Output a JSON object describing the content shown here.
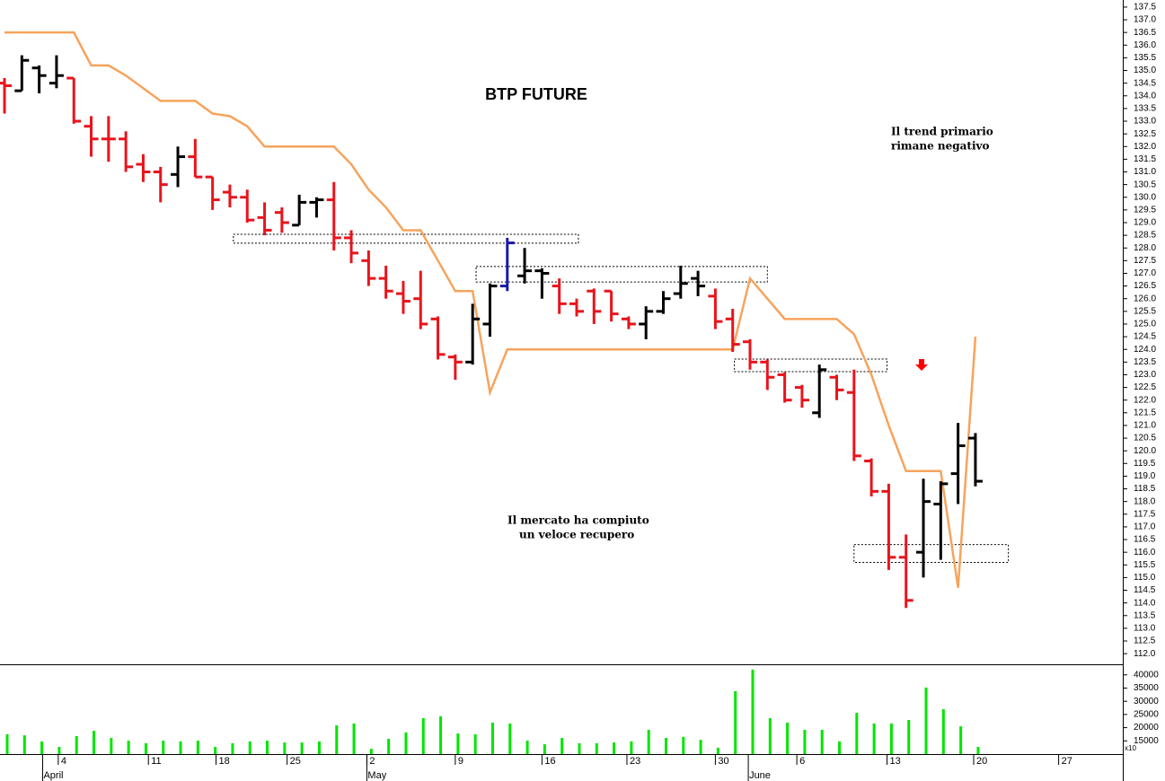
{
  "chart_data": [
    {
      "type": "ohlc",
      "title": "BTP FUTURE",
      "annotations": [
        {
          "lines": [
            "Il trend primario",
            "rimane negativo"
          ],
          "color": "#ff0000"
        },
        {
          "lines": [
            "Il mercato ha compiuto",
            "un veloce recupero"
          ],
          "color": "#000000"
        }
      ],
      "categories": [
        null,
        null,
        null,
        null,
        null,
        null,
        null,
        null,
        null,
        null,
        null,
        null,
        null,
        null,
        null,
        null,
        null,
        null,
        null,
        null,
        null,
        null,
        null,
        null,
        null,
        null,
        null,
        null,
        null,
        null,
        null,
        null,
        null,
        null,
        null,
        null,
        null,
        null,
        null,
        null,
        null,
        null,
        null,
        null,
        null,
        null,
        null,
        null,
        null,
        null,
        null,
        null,
        null,
        null,
        null,
        null,
        null
      ],
      "open": [
        134.5,
        134.2,
        135.1,
        134.5,
        134.7,
        132.8,
        132.3,
        132.3,
        131.3,
        131.0,
        130.9,
        131.6,
        130.8,
        130.2,
        130.0,
        129.2,
        129.4,
        128.9,
        129.8,
        129.9,
        128.4,
        127.5,
        126.8,
        126.2,
        126.0,
        125.2,
        123.7,
        123.5,
        125.0,
        126.5,
        126.9,
        127.1,
        126.5,
        125.8,
        126.3,
        126.3,
        125.2,
        125.0,
        125.5,
        126.2,
        126.8,
        126.1,
        125.2,
        124.3,
        123.5,
        123.0,
        122.5,
        121.5,
        122.9,
        122.3,
        119.6,
        118.4,
        115.8,
        116.0,
        117.9,
        119.1,
        120.5
      ],
      "high": [
        134.7,
        135.6,
        135.2,
        135.6,
        134.7,
        133.2,
        133.2,
        132.6,
        131.7,
        131.2,
        132.0,
        132.3,
        130.8,
        130.5,
        130.3,
        129.8,
        129.6,
        130.1,
        130.0,
        130.6,
        128.7,
        127.9,
        127.3,
        126.7,
        127.1,
        125.3,
        123.8,
        125.8,
        126.6,
        128.4,
        128.0,
        127.2,
        126.8,
        126.0,
        126.4,
        126.3,
        125.3,
        125.7,
        126.3,
        127.3,
        127.1,
        126.4,
        125.6,
        124.4,
        123.6,
        123.1,
        122.6,
        123.4,
        123.0,
        123.2,
        119.7,
        118.7,
        116.7,
        118.9,
        118.8,
        121.1,
        120.7
      ],
      "low": [
        133.3,
        134.2,
        134.1,
        134.3,
        132.9,
        131.6,
        131.4,
        131.0,
        130.6,
        129.8,
        130.4,
        130.8,
        129.5,
        129.6,
        129.0,
        128.5,
        128.6,
        128.9,
        129.2,
        127.9,
        127.4,
        126.5,
        126.0,
        125.4,
        124.8,
        123.6,
        122.8,
        123.4,
        124.5,
        126.3,
        126.6,
        126.0,
        125.4,
        125.3,
        125.0,
        125.1,
        124.8,
        124.4,
        125.4,
        126.0,
        126.1,
        124.8,
        123.9,
        123.2,
        122.4,
        121.9,
        121.7,
        121.3,
        122.0,
        119.6,
        118.2,
        115.3,
        113.8,
        115.0,
        115.7,
        117.9,
        118.6
      ],
      "close": [
        134.4,
        135.4,
        134.8,
        134.8,
        133.0,
        132.3,
        132.3,
        131.2,
        131.0,
        130.5,
        131.6,
        130.8,
        129.9,
        130.0,
        129.1,
        128.7,
        129.0,
        129.8,
        129.9,
        128.4,
        127.8,
        126.8,
        126.3,
        125.9,
        125.0,
        123.8,
        123.5,
        125.2,
        126.5,
        128.2,
        127.1,
        127.0,
        125.8,
        125.5,
        125.5,
        125.4,
        125.0,
        125.5,
        126.0,
        126.6,
        126.5,
        125.1,
        124.2,
        123.5,
        122.9,
        122.0,
        122.0,
        123.2,
        122.4,
        119.8,
        118.4,
        115.8,
        114.1,
        118.0,
        118.7,
        120.2,
        118.8
      ],
      "colors": [
        "#e8141c",
        "#000000",
        "#000000",
        "#000000",
        "#e8141c",
        "#e8141c",
        "#e8141c",
        "#e8141c",
        "#e8141c",
        "#e8141c",
        "#000000",
        "#e8141c",
        "#e8141c",
        "#e8141c",
        "#e8141c",
        "#e8141c",
        "#e8141c",
        "#000000",
        "#000000",
        "#e8141c",
        "#e8141c",
        "#e8141c",
        "#e8141c",
        "#e8141c",
        "#e8141c",
        "#e8141c",
        "#e8141c",
        "#000000",
        "#000000",
        "#1a1aa8",
        "#000000",
        "#000000",
        "#e8141c",
        "#e8141c",
        "#e8141c",
        "#e8141c",
        "#e8141c",
        "#000000",
        "#000000",
        "#000000",
        "#000000",
        "#e8141c",
        "#e8141c",
        "#e8141c",
        "#e8141c",
        "#e8141c",
        "#e8141c",
        "#000000",
        "#e8141c",
        "#e8141c",
        "#e8141c",
        "#e8141c",
        "#e8141c",
        "#000000",
        "#000000",
        "#000000",
        "#000000"
      ],
      "line": {
        "color": "#f7a35c",
        "values": [
          136.5,
          136.5,
          136.5,
          136.5,
          136.5,
          135.2,
          135.2,
          134.8,
          134.3,
          133.8,
          133.8,
          133.8,
          133.3,
          133.2,
          132.8,
          132.0,
          132.0,
          132.0,
          132.0,
          132.0,
          131.3,
          130.3,
          129.6,
          128.7,
          128.7,
          127.5,
          126.3,
          126.3,
          122.3,
          124.0,
          124.0,
          124.0,
          124.0,
          124.0,
          124.0,
          124.0,
          124.0,
          124.0,
          124.0,
          124.0,
          124.0,
          124.0,
          124.0,
          126.8,
          126.0,
          125.2,
          125.2,
          125.2,
          125.2,
          124.6,
          123.0,
          121.0,
          119.2,
          119.2,
          119.2,
          114.6,
          124.5
        ]
      },
      "zones": [
        {
          "from": 13.2,
          "to": 33.1,
          "low": 128.19,
          "high": 128.54
        },
        {
          "from": 27.2,
          "to": 44.0,
          "low": 126.66,
          "high": 127.27
        },
        {
          "from": 42.1,
          "to": 50.9,
          "low": 123.12,
          "high": 123.62
        },
        {
          "from": 49.0,
          "to": 57.9,
          "low": 115.6,
          "high": 116.3
        }
      ],
      "xlim": [
        -0.26,
        64.5
      ],
      "ylim": [
        111.58,
        137.78
      ],
      "yticks": [
        {
          "value": 112,
          "label": "112.0"
        },
        112.5,
        {
          "value": 113,
          "label": "113.0"
        },
        113.5,
        {
          "value": 114,
          "label": "114.0"
        },
        114.5,
        {
          "value": 115,
          "label": "115.0"
        },
        115.5,
        {
          "value": 116,
          "label": "116.0"
        },
        116.5,
        {
          "value": 117,
          "label": "117.0"
        },
        117.5,
        {
          "value": 118,
          "label": "118.0"
        },
        118.5,
        {
          "value": 119,
          "label": "119.0"
        },
        119.5,
        {
          "value": 120,
          "label": "120.0"
        },
        120.5,
        {
          "value": 121,
          "label": "121.0"
        },
        121.5,
        {
          "value": 122,
          "label": "122.0"
        },
        122.5,
        {
          "value": 123,
          "label": "123.0"
        },
        123.5,
        {
          "value": 124,
          "label": "124.0"
        },
        124.5,
        {
          "value": 125,
          "label": "125.0"
        },
        125.5,
        {
          "value": 126,
          "label": "126.0"
        },
        126.5,
        {
          "value": 127,
          "label": "127.0"
        },
        127.5,
        {
          "value": 128,
          "label": "128.0"
        },
        128.5,
        {
          "value": 129,
          "label": "129.0"
        },
        129.5,
        {
          "value": 130,
          "label": "130.0"
        },
        130.5,
        {
          "value": 131,
          "label": "131.0"
        },
        131.5,
        {
          "value": 132,
          "label": "132.0"
        },
        132.5,
        {
          "value": 133,
          "label": "133.0"
        },
        133.5,
        {
          "value": 134,
          "label": "134.0"
        },
        134.5,
        {
          "value": 135,
          "label": "135.0"
        },
        135.5,
        {
          "value": 136,
          "label": "136.0"
        },
        136.5,
        {
          "value": 137,
          "label": "137.0"
        },
        137.5
      ]
    },
    {
      "type": "bar",
      "categories": [
        null,
        null,
        null,
        null,
        null,
        null,
        null,
        null,
        null,
        null,
        null,
        null,
        null,
        null,
        null,
        null,
        null,
        null,
        null,
        null,
        null,
        null,
        null,
        null,
        null,
        null,
        null,
        null,
        null,
        null,
        null,
        null,
        null,
        null,
        null,
        null,
        null,
        null,
        null,
        null,
        null,
        null,
        null,
        null,
        null,
        null,
        null,
        null,
        null,
        null,
        null,
        null,
        null,
        null,
        null,
        null,
        null
      ],
      "values": [
        17500,
        17100,
        14800,
        12700,
        16800,
        18800,
        16100,
        15100,
        14100,
        15100,
        14800,
        15100,
        12700,
        14100,
        14800,
        15100,
        14400,
        14400,
        14800,
        20900,
        21600,
        12000,
        15800,
        18200,
        23600,
        24300,
        17800,
        17500,
        21900,
        21600,
        15100,
        13700,
        16100,
        14100,
        14100,
        14400,
        14800,
        19200,
        16100,
        16500,
        15400,
        12400,
        33800,
        42000,
        23600,
        21900,
        19200,
        19200,
        14800,
        25600,
        21600,
        21600,
        22900,
        35200,
        27000,
        20500,
        12700
      ],
      "color": "#00e600",
      "xlim": [
        -0.26,
        64.5
      ],
      "ylim": [
        10000,
        44000
      ],
      "yticks": [
        15000,
        20000,
        25000,
        30000,
        35000,
        40000
      ],
      "axis_note": "x10",
      "xticks": [
        {
          "value": 3.1,
          "label": "4"
        },
        {
          "value": 8.3,
          "label": "11"
        },
        {
          "value": 12.2,
          "label": "18"
        },
        {
          "value": 16.3,
          "label": "25"
        },
        {
          "value": 20.9,
          "label": "2"
        },
        {
          "value": 26.0,
          "label": "9"
        },
        {
          "value": 31.0,
          "label": "16"
        },
        {
          "value": 35.9,
          "label": "23"
        },
        {
          "value": 41.0,
          "label": "30"
        },
        {
          "value": 45.7,
          "label": "6"
        },
        {
          "value": 50.9,
          "label": "13"
        },
        {
          "value": 55.9,
          "label": "20"
        },
        {
          "value": 60.8,
          "label": "27"
        }
      ],
      "month_ticks": [
        {
          "value": 2.2,
          "label": "April"
        },
        {
          "value": 20.9,
          "label": "May"
        },
        {
          "value": 42.9,
          "label": "June"
        }
      ]
    }
  ]
}
